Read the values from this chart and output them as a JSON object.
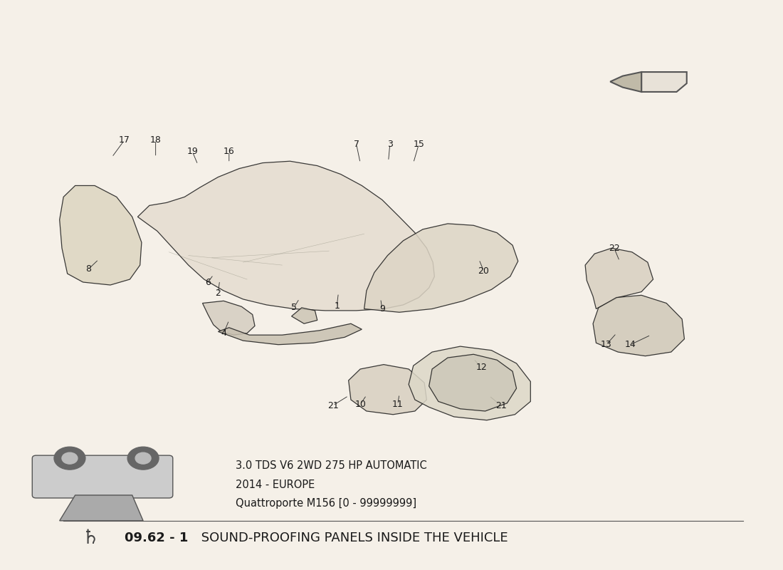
{
  "title_bold": "09.62 - 1",
  "title_regular": " SOUND-PROOFING PANELS INSIDE THE VEHICLE",
  "subtitle_line1": "Quattroporte M156 [0 - 99999999]",
  "subtitle_line2": "2014 - EUROPE",
  "subtitle_line3": "3.0 TDS V6 2WD 275 HP AUTOMATIC",
  "bg_color": "#f5f0e8",
  "line_color": "#1a1a1a",
  "text_color": "#1a1a1a"
}
